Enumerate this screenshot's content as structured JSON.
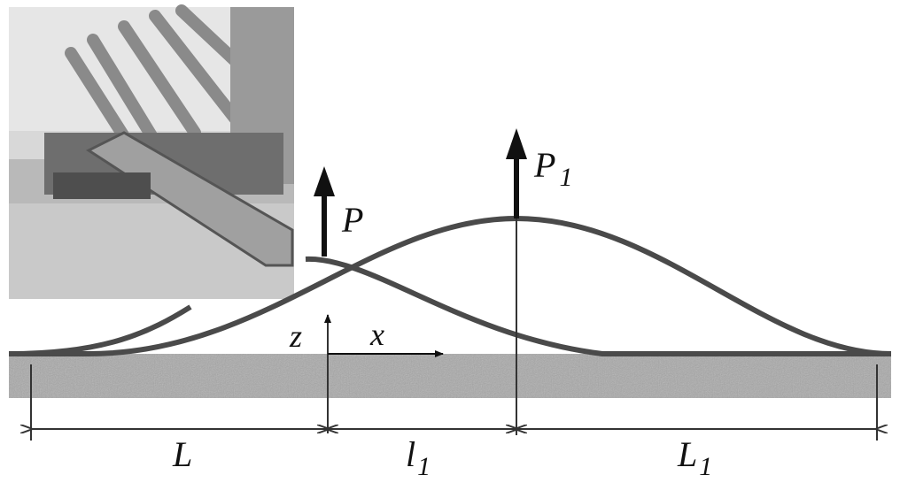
{
  "labels": {
    "P": "P",
    "P1_main": "P",
    "P1_sub": "1",
    "z": "z",
    "x": "x",
    "L": "L",
    "l1_main": "l",
    "l1_sub": "1",
    "L1_main": "L",
    "L1_sub": "1"
  },
  "photo": {
    "description_icon": "pipe-laying-photo"
  },
  "colors": {
    "curve": "#4a4a4a",
    "seabed": "#a8a8a8",
    "arrow": "#111111"
  }
}
